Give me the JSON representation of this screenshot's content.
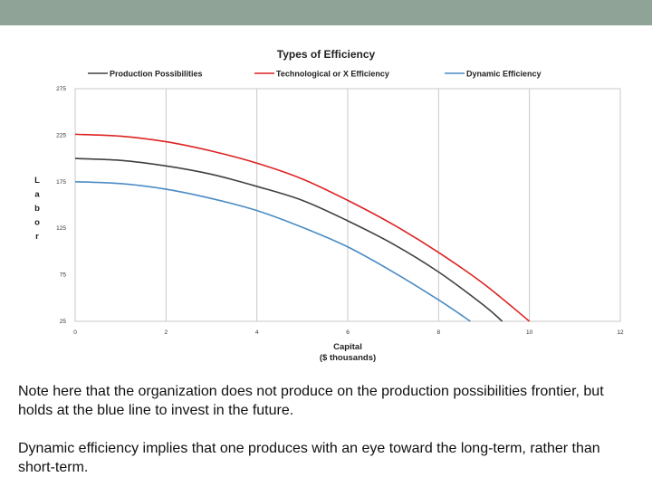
{
  "chart_data": {
    "type": "line",
    "title": "Types of Efficiency",
    "xlabel": "Capital ($ thousands)",
    "xlabel_lines": [
      "Capital",
      "($ thousands)"
    ],
    "ylabel": "Labor",
    "xlim": [
      0,
      12
    ],
    "ylim": [
      25,
      275
    ],
    "x_ticks": [
      "0",
      "2",
      "4",
      "6",
      "8",
      "10",
      "12"
    ],
    "y_ticks": [
      "275",
      "225",
      "175",
      "125",
      "75",
      "25"
    ],
    "grid": "vertical",
    "legend_position": "top",
    "series": [
      {
        "name": "Production Possibilities",
        "color": "#404040",
        "x": [
          0,
          1,
          2,
          3,
          4,
          5,
          6,
          7,
          8,
          9,
          9.4
        ],
        "y": [
          200,
          198,
          192,
          183,
          170,
          155,
          133,
          108,
          78,
          42,
          25
        ]
      },
      {
        "name": "Technological or X Efficiency",
        "color": "#dd2222",
        "x": [
          0,
          1,
          2,
          3,
          4,
          5,
          6,
          7,
          8,
          9,
          10
        ],
        "y": [
          226,
          224,
          218,
          208,
          195,
          178,
          155,
          129,
          99,
          65,
          25
        ]
      },
      {
        "name": "Dynamic Efficiency",
        "color": "#4a8bc4",
        "x": [
          0,
          1,
          2,
          3,
          4,
          5,
          6,
          7,
          8,
          8.7
        ],
        "y": [
          175,
          173,
          167,
          157,
          144,
          126,
          105,
          78,
          48,
          25
        ]
      }
    ]
  },
  "notes": {
    "paragraph1": "Note here that the organization does not produce on the production possibilities frontier, but holds at the blue line to invest in the future.",
    "paragraph2": "Dynamic efficiency implies that one produces with an eye toward the long-term, rather than short-term."
  }
}
